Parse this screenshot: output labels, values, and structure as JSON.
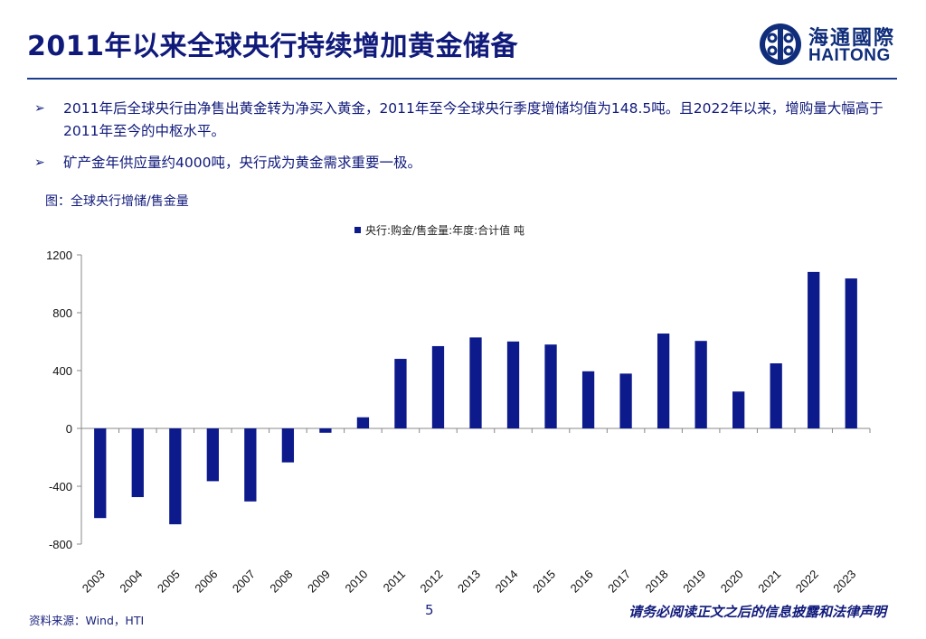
{
  "header": {
    "title": "2011年以来全球央行持续增加黄金储备",
    "logo_cn": "海通國際",
    "logo_en": "HAITONG"
  },
  "bullets": [
    "2011年后全球央行由净售出黄金转为净买入黄金，2011年至今全球央行季度增储均值为148.5吨。且2022年以来，增购量大幅高于2011年至今的中枢水平。",
    "矿产金年供应量约4000吨，央行成为黄金需求重要一极。"
  ],
  "figure_caption": "图：全球央行增储/售金量",
  "chart_data": {
    "type": "bar",
    "categories": [
      "2003",
      "2004",
      "2005",
      "2006",
      "2007",
      "2008",
      "2009",
      "2010",
      "2011",
      "2012",
      "2013",
      "2014",
      "2015",
      "2016",
      "2017",
      "2018",
      "2019",
      "2020",
      "2021",
      "2022",
      "2023"
    ],
    "series": [
      {
        "name": "央行:购金/售金量:年度:合计值 吨",
        "values": [
          -620,
          -475,
          -663,
          -365,
          -505,
          -235,
          -30,
          77,
          481,
          569,
          629,
          601,
          580,
          395,
          379,
          656,
          605,
          255,
          450,
          1082,
          1037
        ]
      }
    ],
    "ylim": [
      -800,
      1200
    ],
    "yticks": [
      1200,
      800,
      400,
      0,
      -400,
      -800
    ],
    "legend_position": "top-center",
    "grid": false,
    "bar_color": "#0c1a8c"
  },
  "footer": {
    "source": "资料来源：Wind，HTI",
    "page_number": "5",
    "disclaimer": "请务必阅读正文之后的信息披露和法律声明"
  }
}
